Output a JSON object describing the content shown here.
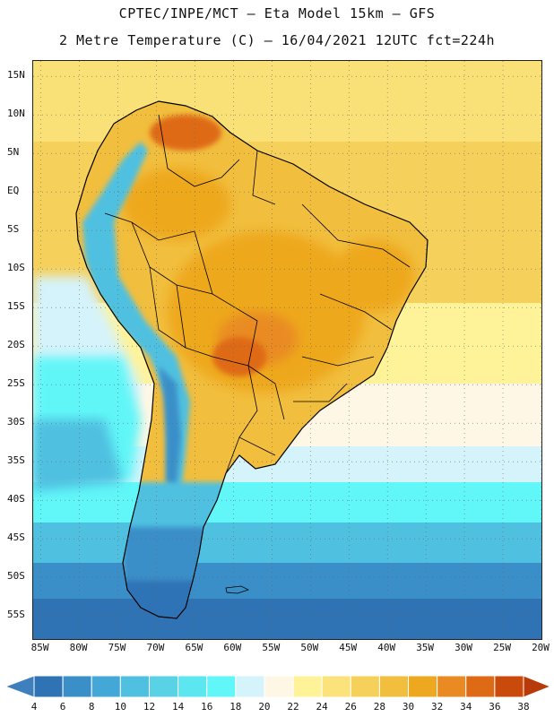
{
  "header": {
    "line1": "CPTEC/INPE/MCT –  Eta Model 15km – GFS",
    "line2": "2 Metre Temperature (C) – 16/04/2021 12UTC fct=224h"
  },
  "map": {
    "region": "South America",
    "lat_labels": [
      "15N",
      "10N",
      "5N",
      "EQ",
      "5S",
      "10S",
      "15S",
      "20S",
      "25S",
      "30S",
      "35S",
      "40S",
      "45S",
      "50S",
      "55S"
    ],
    "lon_labels": [
      "85W",
      "80W",
      "75W",
      "70W",
      "65W",
      "60W",
      "55W",
      "50W",
      "45W",
      "40W",
      "35W",
      "30W",
      "25W",
      "20W"
    ],
    "lat_range": [
      -58,
      17
    ],
    "lon_range": [
      -86,
      -20
    ],
    "grid": "dotted"
  },
  "colorbar": {
    "unit": "C",
    "ticks": [
      "4",
      "6",
      "8",
      "10",
      "12",
      "14",
      "16",
      "18",
      "20",
      "22",
      "24",
      "26",
      "28",
      "30",
      "32",
      "34",
      "36",
      "38"
    ],
    "colors": [
      "#3e7fbd",
      "#2f73b5",
      "#3a8fc8",
      "#43a8d8",
      "#4fc0e0",
      "#5ad2e6",
      "#5be6f0",
      "#61f6f8",
      "#d5f3fb",
      "#fff7e5",
      "#fff39a",
      "#fbe27a",
      "#f5d05a",
      "#f1be3e",
      "#eea81f",
      "#e98b22",
      "#df6a15",
      "#c94a0b",
      "#b83a08"
    ]
  }
}
